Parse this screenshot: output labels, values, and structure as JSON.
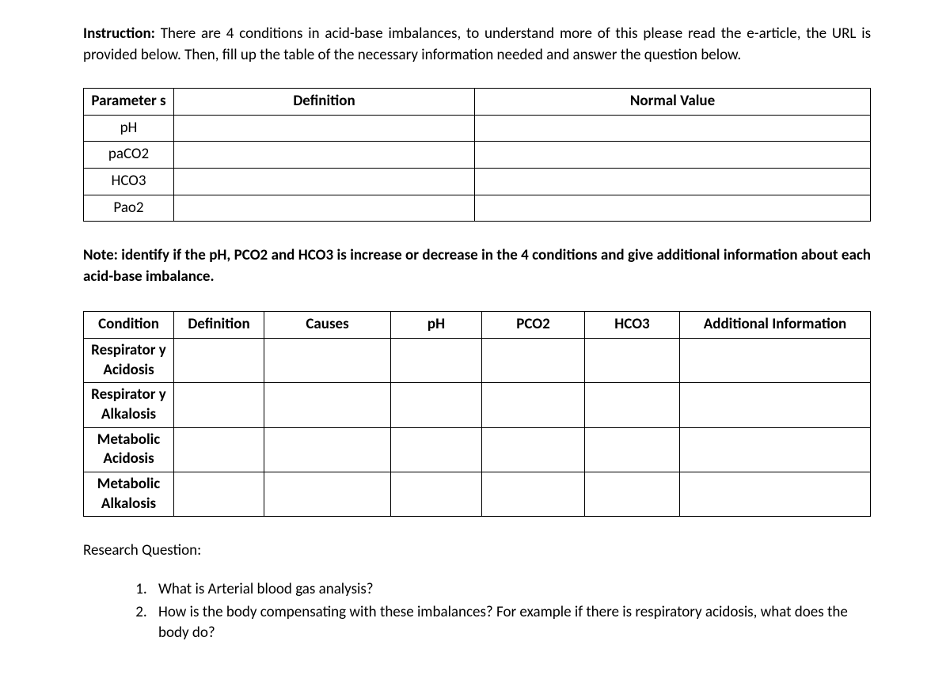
{
  "instruction": {
    "label": "Instruction:",
    "text": " There are 4 conditions in acid-base imbalances, to understand more of this please read the e-article, the URL is provided below. Then, fill up the table of the necessary information needed and answer the question below."
  },
  "table1": {
    "headers": {
      "parameter": "Parameter s",
      "definition": "Definition",
      "normal_value": "Normal Value"
    },
    "rows": [
      {
        "param": "pH",
        "def": "",
        "normal": ""
      },
      {
        "param": "paCO2",
        "def": "",
        "normal": ""
      },
      {
        "param": "HCO3",
        "def": "",
        "normal": ""
      },
      {
        "param": "Pao2",
        "def": "",
        "normal": ""
      }
    ]
  },
  "note_text": "Note: identify if the pH, PCO2 and HCO3 is increase or decrease in the 4 conditions and give additional information about each acid-base imbalance.",
  "table2": {
    "headers": {
      "condition": "Condition",
      "definition": "Definition",
      "causes": "Causes",
      "ph": "pH",
      "pco2": "PCO2",
      "hco3": "HCO3",
      "additional": "Additional Information"
    },
    "rows": [
      {
        "cond": "Respirator y Acidosis",
        "def": "",
        "causes": "",
        "ph": "",
        "pco2": "",
        "hco3": "",
        "add": ""
      },
      {
        "cond": "Respirator y Alkalosis",
        "def": "",
        "causes": "",
        "ph": "",
        "pco2": "",
        "hco3": "",
        "add": ""
      },
      {
        "cond": "Metabolic Acidosis",
        "def": "",
        "causes": "",
        "ph": "",
        "pco2": "",
        "hco3": "",
        "add": ""
      },
      {
        "cond": "Metabolic Alkalosis",
        "def": "",
        "causes": "",
        "ph": "",
        "pco2": "",
        "hco3": "",
        "add": ""
      }
    ]
  },
  "research_label": "Research Question:",
  "questions": [
    "What is Arterial blood gas analysis?",
    "How is the body compensating with these imbalances? For example if there is respiratory acidosis, what does the body do?"
  ]
}
